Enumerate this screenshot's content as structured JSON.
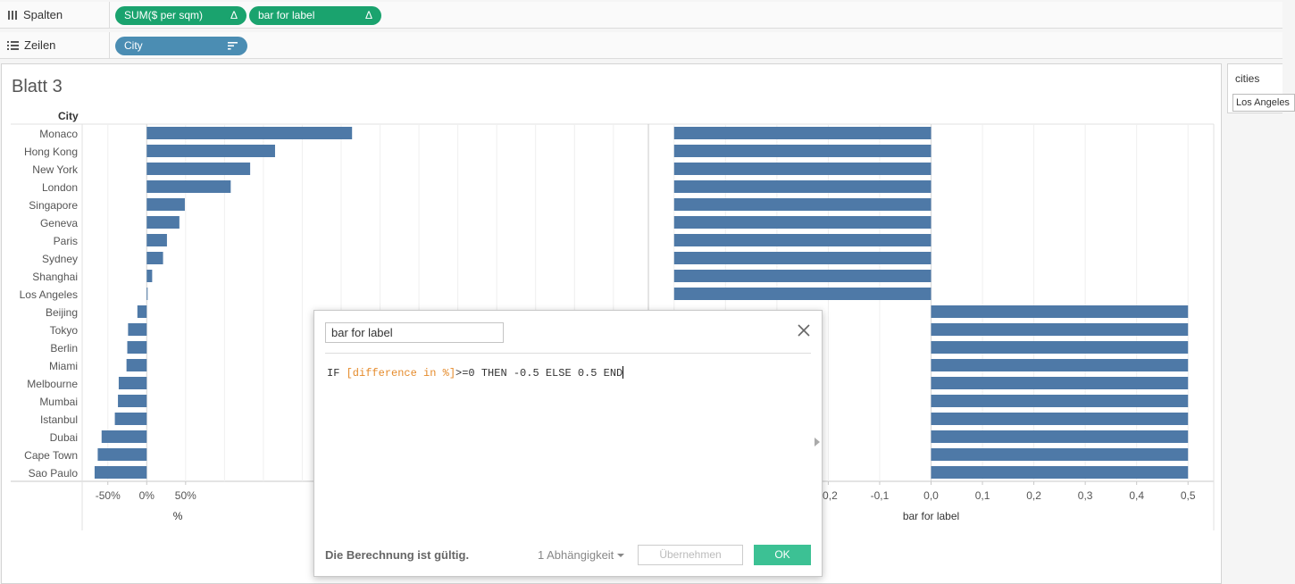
{
  "shelves": {
    "columns": {
      "label": "Spalten",
      "pills": [
        {
          "label": "SUM($ per sqm)",
          "icon": "Δ"
        },
        {
          "label": "bar for label",
          "icon": "Δ"
        }
      ]
    },
    "rows": {
      "label": "Zeilen",
      "pills": [
        {
          "label": "City",
          "icon": "sort-icon"
        }
      ]
    }
  },
  "sheet": {
    "title": "Blatt 3",
    "row_header": "City"
  },
  "filter_panel": {
    "title": "cities",
    "selected": "Los Angeles"
  },
  "colors": {
    "bar": "#4e79a7",
    "pill_green": "#1aa36e",
    "pill_blue": "#4b8db3",
    "field_orange": "#e58b2c",
    "ok_green": "#3cc194"
  },
  "chart_data": [
    {
      "type": "bar",
      "orientation": "horizontal",
      "categories": [
        "Monaco",
        "Hong Kong",
        "New York",
        "London",
        "Singapore",
        "Geneva",
        "Paris",
        "Sydney",
        "Shanghai",
        "Los Angeles",
        "Beijing",
        "Tokyo",
        "Berlin",
        "Miami",
        "Melbourne",
        "Mumbai",
        "Istanbul",
        "Dubai",
        "Cape Town",
        "Sao Paulo"
      ],
      "values": [
        264,
        165,
        133,
        108,
        49,
        42,
        26,
        21,
        7,
        0,
        -12,
        -24,
        -25,
        -26,
        -36,
        -37,
        -41,
        -58,
        -63,
        -67
      ],
      "xlabel": "%",
      "xticks": [
        "-50%",
        "0%",
        "50%"
      ],
      "xtick_values": [
        -50,
        0,
        50
      ],
      "xlim": [
        -83,
        645
      ]
    },
    {
      "type": "bar",
      "orientation": "horizontal",
      "categories": [
        "Monaco",
        "Hong Kong",
        "New York",
        "London",
        "Singapore",
        "Geneva",
        "Paris",
        "Sydney",
        "Shanghai",
        "Los Angeles",
        "Beijing",
        "Tokyo",
        "Berlin",
        "Miami",
        "Melbourne",
        "Mumbai",
        "Istanbul",
        "Dubai",
        "Cape Town",
        "Sao Paulo"
      ],
      "values": [
        -0.5,
        -0.5,
        -0.5,
        -0.5,
        -0.5,
        -0.5,
        -0.5,
        -0.5,
        -0.5,
        -0.5,
        0.5,
        0.5,
        0.5,
        0.5,
        0.5,
        0.5,
        0.5,
        0.5,
        0.5,
        0.5
      ],
      "xlabel": "bar for label",
      "xticks": [
        "-0,2",
        "-0,1",
        "0,0",
        "0,1",
        "0,2",
        "0,3",
        "0,4",
        "0,5"
      ],
      "xtick_values": [
        -0.2,
        -0.1,
        0.0,
        0.1,
        0.2,
        0.3,
        0.4,
        0.5
      ],
      "xlim": [
        -0.55,
        0.55
      ]
    }
  ],
  "dialog": {
    "calc_name": "bar for label",
    "formula_prefix": "IF ",
    "formula_field": "[difference in %]",
    "formula_suffix": ">=0 THEN -0.5 ELSE 0.5 END",
    "status": "Die Berechnung ist gültig.",
    "dependencies": "1 Abhängigkeit",
    "apply_label": "Übernehmen",
    "ok_label": "OK"
  }
}
